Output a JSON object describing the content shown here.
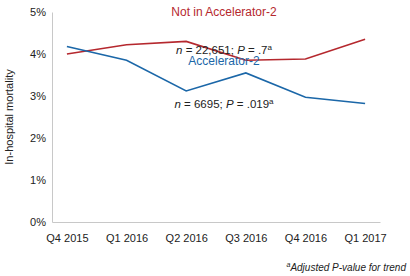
{
  "chart_data": {
    "type": "line",
    "y_label": "In-hospital mortality",
    "categories": [
      "Q4 2015",
      "Q1 2016",
      "Q2 2016",
      "Q3 2016",
      "Q4 2016",
      "Q1 2017"
    ],
    "series": [
      {
        "name": "Not in Accelerator-2",
        "color": "#b5282e",
        "values": [
          4.0,
          4.22,
          4.3,
          3.85,
          3.88,
          4.35
        ]
      },
      {
        "name": "Accelerator-2",
        "color": "#1b67a8",
        "values": [
          4.18,
          3.85,
          3.12,
          3.55,
          2.97,
          2.82
        ]
      }
    ],
    "annotations": [
      {
        "text": "n = 22,651; P = .7",
        "superscript": "a"
      },
      {
        "text": "n = 6695; P = .019",
        "superscript": "a"
      }
    ],
    "footnote": {
      "superscript": "a",
      "text": "Adjusted P-value for trend"
    },
    "ylim": [
      0,
      5
    ],
    "yticks": [
      {
        "value": 0,
        "label": "0%"
      },
      {
        "value": 1,
        "label": "1%"
      },
      {
        "value": 2,
        "label": "2%"
      },
      {
        "value": 3,
        "label": "3%"
      },
      {
        "value": 4,
        "label": "4%"
      },
      {
        "value": 5,
        "label": "5%"
      }
    ],
    "grid": false,
    "marker": "none",
    "line_style": "solid"
  }
}
